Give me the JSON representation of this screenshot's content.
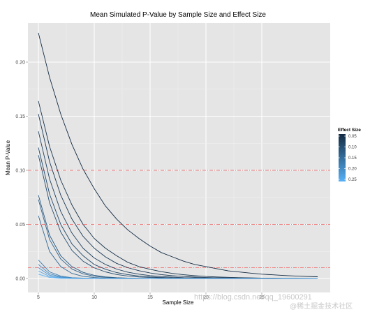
{
  "chart_data": {
    "type": "line",
    "title": "Mean Simulated P-Value by Sample Size and Effect Size",
    "xlabel": "Sample Size",
    "ylabel": "Mean P-Value",
    "xlim": [
      5,
      30
    ],
    "ylim": [
      0,
      0.23
    ],
    "xticks": [
      5,
      10,
      15,
      20,
      25
    ],
    "yticks": [
      0.0,
      0.05,
      0.1,
      0.15,
      0.2
    ],
    "grid": true,
    "reference_lines": [
      0.01,
      0.05,
      0.1
    ],
    "x": [
      5,
      6,
      7,
      8,
      9,
      10,
      11,
      12,
      13,
      14,
      15,
      16,
      17,
      18,
      19,
      20,
      21,
      22,
      23,
      24,
      25,
      26,
      27,
      28,
      29,
      30
    ],
    "legend": {
      "title": "Effect Size",
      "placement": "right",
      "labels": [
        "0.05",
        "0.10",
        "0.15",
        "0.20",
        "0.25"
      ],
      "color_low": "#132b43",
      "color_high": "#56b1f7"
    },
    "series": [
      {
        "effect": 0.05,
        "values": [
          0.227,
          0.186,
          0.152,
          0.124,
          0.101,
          0.083,
          0.067,
          0.055,
          0.045,
          0.037,
          0.03,
          0.024,
          0.02,
          0.016,
          0.013,
          0.011,
          0.009,
          0.007,
          0.006,
          0.005,
          0.004,
          0.0034,
          0.0028,
          0.0023,
          0.0019,
          0.0016
        ]
      },
      {
        "effect": 0.06,
        "values": [
          0.164,
          0.122,
          0.091,
          0.068,
          0.05,
          0.037,
          0.028,
          0.021,
          0.015,
          0.011,
          0.0085,
          0.0063,
          0.0047,
          0.0035,
          0.0026,
          0.0019,
          0.0014,
          0.0011,
          0.0008,
          0.0006,
          0.0004,
          0.0003,
          0.0002,
          0.0002,
          0.0001,
          0.0001
        ]
      },
      {
        "effect": 0.07,
        "values": [
          0.152,
          0.108,
          0.077,
          0.055,
          0.039,
          0.028,
          0.02,
          0.014,
          0.01,
          0.0072,
          0.0051,
          0.0036,
          0.0026,
          0.0019,
          0.0013,
          0.0009,
          0.0007,
          0.0005,
          0.0003,
          0.0002,
          0.0002,
          0.0001,
          0.0001,
          0.0001,
          0.0001,
          0.0
        ]
      },
      {
        "effect": 0.08,
        "values": [
          0.136,
          0.092,
          0.062,
          0.042,
          0.028,
          0.019,
          0.013,
          0.0087,
          0.0059,
          0.004,
          0.0027,
          0.0018,
          0.0012,
          0.0008,
          0.0006,
          0.0004,
          0.0003,
          0.0002,
          0.0001,
          0.0001,
          0.0001,
          0.0,
          0.0,
          0.0,
          0.0,
          0.0
        ]
      },
      {
        "effect": 0.09,
        "values": [
          0.121,
          0.078,
          0.05,
          0.032,
          0.021,
          0.013,
          0.0086,
          0.0055,
          0.0036,
          0.0023,
          0.0015,
          0.001,
          0.0006,
          0.0004,
          0.0003,
          0.0002,
          0.0001,
          0.0001,
          0.0,
          0.0,
          0.0,
          0.0,
          0.0,
          0.0,
          0.0,
          0.0
        ]
      },
      {
        "effect": 0.1,
        "values": [
          0.114,
          0.07,
          0.043,
          0.026,
          0.016,
          0.0099,
          0.0061,
          0.0037,
          0.0023,
          0.0014,
          0.0009,
          0.0005,
          0.0003,
          0.0002,
          0.0001,
          0.0001,
          0.0,
          0.0,
          0.0,
          0.0,
          0.0,
          0.0,
          0.0,
          0.0,
          0.0,
          0.0
        ]
      },
      {
        "effect": 0.12,
        "values": [
          0.077,
          0.04,
          0.021,
          0.011,
          0.0057,
          0.003,
          0.0015,
          0.0008,
          0.0004,
          0.0002,
          0.0001,
          0.0001,
          0.0,
          0.0,
          0.0,
          0.0,
          0.0,
          0.0,
          0.0,
          0.0,
          0.0,
          0.0,
          0.0,
          0.0,
          0.0,
          0.0
        ]
      },
      {
        "effect": 0.13,
        "values": [
          0.073,
          0.036,
          0.018,
          0.0088,
          0.0043,
          0.0021,
          0.001,
          0.0005,
          0.0003,
          0.0001,
          0.0001,
          0.0,
          0.0,
          0.0,
          0.0,
          0.0,
          0.0,
          0.0,
          0.0,
          0.0,
          0.0,
          0.0,
          0.0,
          0.0,
          0.0,
          0.0
        ]
      },
      {
        "effect": 0.14,
        "values": [
          0.058,
          0.025,
          0.011,
          0.0047,
          0.002,
          0.0009,
          0.0004,
          0.0002,
          0.0001,
          0.0,
          0.0,
          0.0,
          0.0,
          0.0,
          0.0,
          0.0,
          0.0,
          0.0,
          0.0,
          0.0,
          0.0,
          0.0,
          0.0,
          0.0,
          0.0,
          0.0
        ]
      },
      {
        "effect": 0.17,
        "values": [
          0.017,
          0.0061,
          0.0022,
          0.0008,
          0.0003,
          0.0001,
          0.0,
          0.0,
          0.0,
          0.0,
          0.0,
          0.0,
          0.0,
          0.0,
          0.0,
          0.0,
          0.0,
          0.0,
          0.0,
          0.0,
          0.0,
          0.0,
          0.0,
          0.0,
          0.0,
          0.0
        ]
      },
      {
        "effect": 0.19,
        "values": [
          0.013,
          0.0044,
          0.0015,
          0.0005,
          0.0002,
          0.0001,
          0.0,
          0.0,
          0.0,
          0.0,
          0.0,
          0.0,
          0.0,
          0.0,
          0.0,
          0.0,
          0.0,
          0.0,
          0.0,
          0.0,
          0.0,
          0.0,
          0.0,
          0.0,
          0.0,
          0.0
        ]
      },
      {
        "effect": 0.21,
        "values": [
          0.01,
          0.0031,
          0.001,
          0.0003,
          0.0001,
          0.0,
          0.0,
          0.0,
          0.0,
          0.0,
          0.0,
          0.0,
          0.0,
          0.0,
          0.0,
          0.0,
          0.0,
          0.0,
          0.0,
          0.0,
          0.0,
          0.0,
          0.0,
          0.0,
          0.0,
          0.0
        ]
      },
      {
        "effect": 0.23,
        "values": [
          0.007,
          0.0019,
          0.0005,
          0.0001,
          0.0,
          0.0,
          0.0,
          0.0,
          0.0,
          0.0,
          0.0,
          0.0,
          0.0,
          0.0,
          0.0,
          0.0,
          0.0,
          0.0,
          0.0,
          0.0,
          0.0,
          0.0,
          0.0,
          0.0,
          0.0,
          0.0
        ]
      },
      {
        "effect": 0.25,
        "values": [
          0.004,
          0.001,
          0.0002,
          0.0001,
          0.0,
          0.0,
          0.0,
          0.0,
          0.0,
          0.0,
          0.0,
          0.0,
          0.0,
          0.0,
          0.0,
          0.0,
          0.0,
          0.0,
          0.0,
          0.0,
          0.0,
          0.0,
          0.0,
          0.0,
          0.0,
          0.0
        ]
      }
    ]
  },
  "watermark": {
    "url": "https://blog.csdn.net/qq_19600291",
    "community": "@稀土掘金技术社区"
  }
}
